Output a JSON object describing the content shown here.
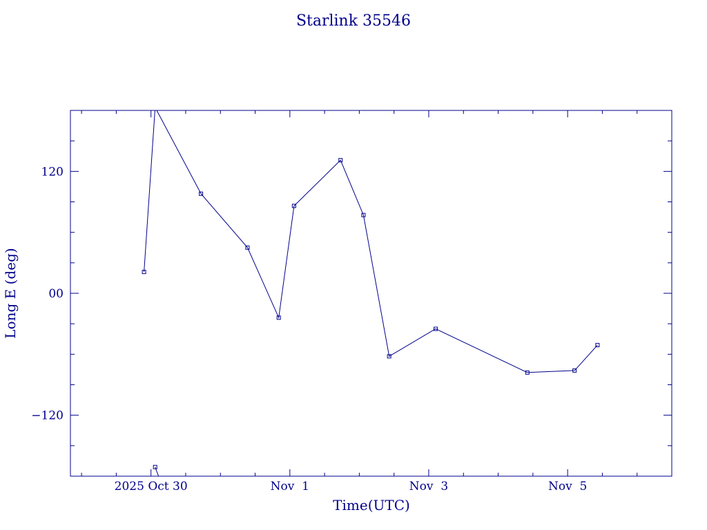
{
  "chart_data": {
    "type": "line",
    "title": "Starlink 35546",
    "xlabel": "Time(UTC)",
    "ylabel": "Long E (deg)",
    "color": "#00008b",
    "xlim": [
      -0.16,
      8.5
    ],
    "ylim": [
      -180,
      180
    ],
    "x_ticks": [
      {
        "x": 1.0,
        "label": "2025 Oct 30"
      },
      {
        "x": 3.0,
        "label": "Nov  1"
      },
      {
        "x": 5.0,
        "label": "Nov  3"
      },
      {
        "x": 7.0,
        "label": "Nov  5"
      }
    ],
    "x_minor_step": 0.5,
    "y_ticks": [
      {
        "y": 120,
        "label": "120"
      },
      {
        "y": 0,
        "label": "00"
      },
      {
        "y": -120,
        "label": "−120"
      }
    ],
    "y_minor_step": 30,
    "segments": [
      [
        {
          "x": 0.9,
          "y": 21
        },
        {
          "x": 1.06,
          "y": 183
        }
      ],
      [
        {
          "x": 1.06,
          "y": -171
        },
        {
          "x": 1.12,
          "y": -182
        }
      ],
      [
        {
          "x": 1.06,
          "y": 183
        },
        {
          "x": 1.72,
          "y": 98
        },
        {
          "x": 2.39,
          "y": 45
        },
        {
          "x": 2.84,
          "y": -24
        },
        {
          "x": 3.06,
          "y": 86
        },
        {
          "x": 3.73,
          "y": 131
        },
        {
          "x": 4.06,
          "y": 77
        },
        {
          "x": 4.43,
          "y": -62
        },
        {
          "x": 5.1,
          "y": -35
        },
        {
          "x": 6.42,
          "y": -78
        },
        {
          "x": 7.1,
          "y": -76
        },
        {
          "x": 7.43,
          "y": -51
        }
      ]
    ],
    "markers": [
      {
        "x": 0.9,
        "y": 21
      },
      {
        "x": 1.06,
        "y": -171
      },
      {
        "x": 1.72,
        "y": 98
      },
      {
        "x": 2.39,
        "y": 45
      },
      {
        "x": 2.84,
        "y": -24
      },
      {
        "x": 3.06,
        "y": 86
      },
      {
        "x": 3.73,
        "y": 131
      },
      {
        "x": 4.06,
        "y": 77
      },
      {
        "x": 4.43,
        "y": -62
      },
      {
        "x": 5.1,
        "y": -35
      },
      {
        "x": 6.42,
        "y": -78
      },
      {
        "x": 7.1,
        "y": -76
      },
      {
        "x": 7.43,
        "y": -51
      }
    ],
    "grid": false
  }
}
